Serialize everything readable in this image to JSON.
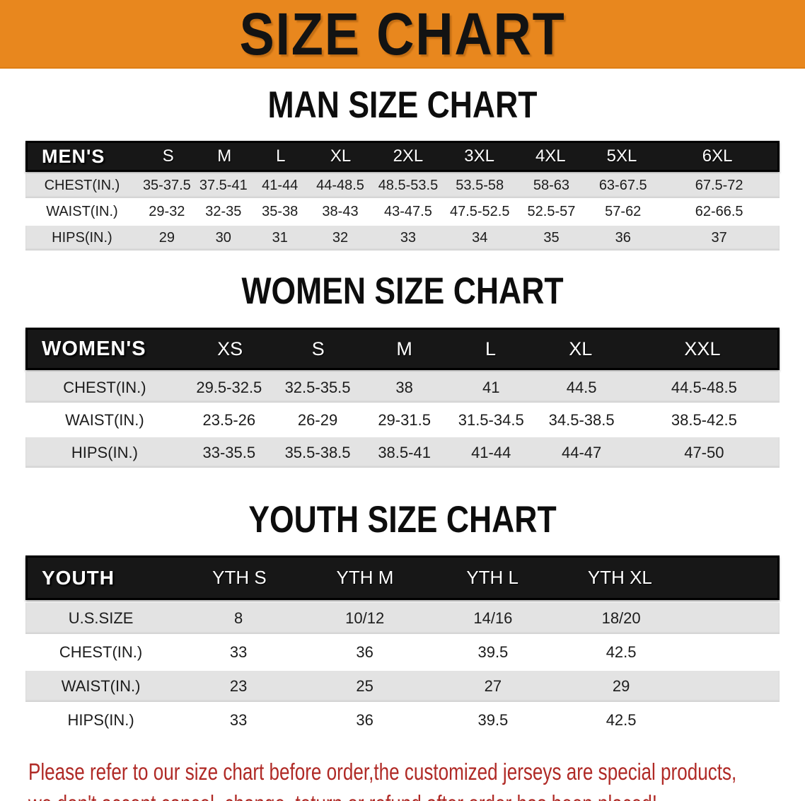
{
  "banner": {
    "title": "SIZE CHART",
    "bg_color": "#E8871E"
  },
  "sections": [
    {
      "title": "MAN SIZE CHART",
      "header_label": "MEN'S",
      "columns": [
        "S",
        "M",
        "L",
        "XL",
        "2XL",
        "3XL",
        "4XL",
        "5XL",
        "6XL"
      ],
      "rows": [
        {
          "label": "CHEST(IN.)",
          "values": [
            "35-37.5",
            "37.5-41",
            "41-44",
            "44-48.5",
            "48.5-53.5",
            "53.5-58",
            "58-63",
            "63-67.5",
            "67.5-72"
          ]
        },
        {
          "label": "WAIST(IN.)",
          "values": [
            "29-32",
            "32-35",
            "35-38",
            "38-43",
            "43-47.5",
            "47.5-52.5",
            "52.5-57",
            "57-62",
            "62-66.5"
          ]
        },
        {
          "label": "HIPS(IN.)",
          "values": [
            "29",
            "30",
            "31",
            "32",
            "33",
            "34",
            "35",
            "36",
            "37"
          ]
        }
      ]
    },
    {
      "title": "WOMEN SIZE CHART",
      "header_label": "WOMEN'S",
      "columns": [
        "XS",
        "S",
        "M",
        "L",
        "XL",
        "XXL"
      ],
      "rows": [
        {
          "label": "CHEST(IN.)",
          "values": [
            "29.5-32.5",
            "32.5-35.5",
            "38",
            "41",
            "44.5",
            "44.5-48.5"
          ]
        },
        {
          "label": "WAIST(IN.)",
          "values": [
            "23.5-26",
            "26-29",
            "29-31.5",
            "31.5-34.5",
            "34.5-38.5",
            "38.5-42.5"
          ]
        },
        {
          "label": "HIPS(IN.)",
          "values": [
            "33-35.5",
            "35.5-38.5",
            "38.5-41",
            "41-44",
            "44-47",
            "47-50"
          ]
        }
      ]
    },
    {
      "title": "YOUTH SIZE CHART",
      "header_label": "YOUTH",
      "columns": [
        "YTH S",
        "YTH M",
        "YTH L",
        "YTH XL"
      ],
      "rows": [
        {
          "label": "U.S.SIZE",
          "values": [
            "8",
            "10/12",
            "14/16",
            "18/20"
          ]
        },
        {
          "label": "CHEST(IN.)",
          "values": [
            "33",
            "36",
            "39.5",
            "42.5"
          ]
        },
        {
          "label": "WAIST(IN.)",
          "values": [
            "23",
            "25",
            "27",
            "29"
          ]
        },
        {
          "label": "HIPS(IN.)",
          "values": [
            "33",
            "36",
            "39.5",
            "42.5"
          ]
        }
      ]
    }
  ],
  "disclaimer": {
    "line1": "Please refer to our size chart before order,the customized jerseys are special products,",
    "line2": "we don't accept cancel, change, teturn or refund after order has been placed!",
    "color": "#B02A26"
  }
}
